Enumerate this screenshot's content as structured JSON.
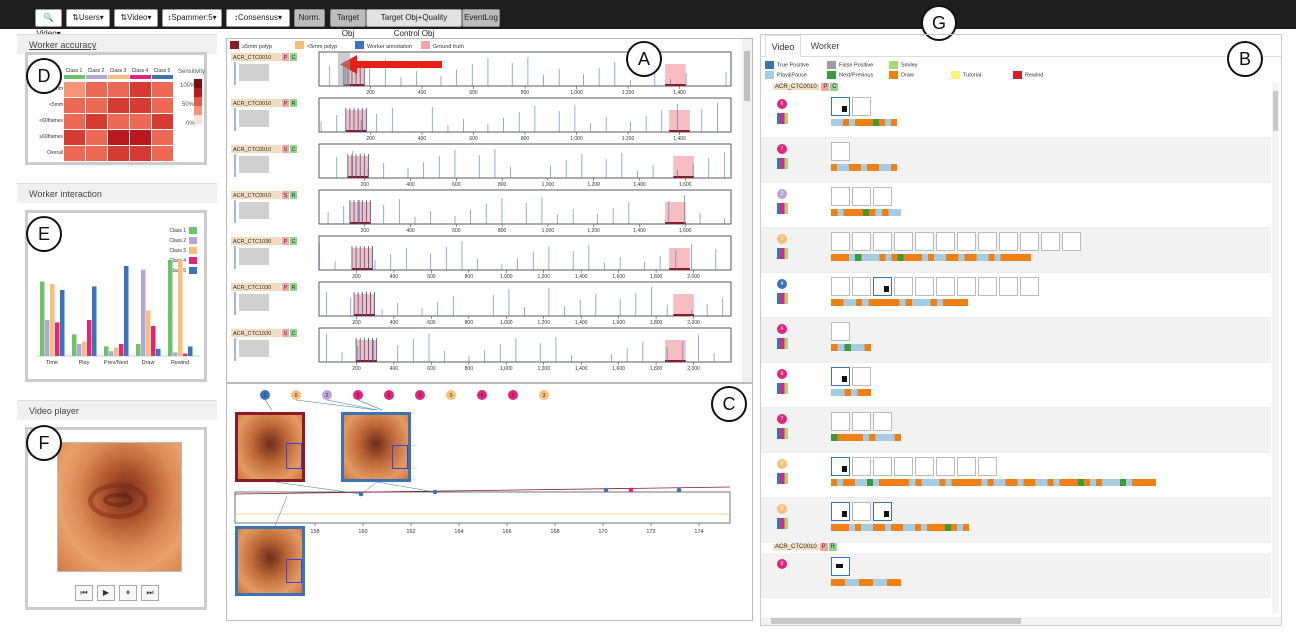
{
  "toolbar": {
    "buttons": [
      {
        "label": "Video",
        "icon": "search-icon"
      },
      {
        "label": "Users",
        "icon": "sort-icon"
      },
      {
        "label": "Video",
        "icon": "sort-icon"
      },
      {
        "label": "Spammer:5",
        "icon": "sort-vertical-icon"
      },
      {
        "label": "Consensus",
        "icon": "sort-vertical-icon"
      }
    ],
    "norm": "Norm.",
    "target_obj": "Target Obj",
    "target_qc": "Target Obj+Quality Control Obj",
    "eventlog": "EventLog"
  },
  "callouts": {
    "a": "A",
    "b": "B",
    "c": "C",
    "d": "D",
    "e": "E",
    "f": "F",
    "g": "G"
  },
  "worker_accuracy": {
    "title": "Worker accuracy",
    "classes": [
      "Class 1",
      "Class 2",
      "Class 3",
      "Class 4",
      "Class 5"
    ],
    "class_colors": [
      "#6cc36c",
      "#b7a5d9",
      "#f7bf79",
      "#e2257a",
      "#3b73b8"
    ],
    "rows": [
      "≥5mm",
      "<5mm",
      "<60frames",
      "≥60frames",
      "Overall"
    ],
    "sensitivity_label": "Sensitivity",
    "scale": [
      "100%",
      "50%",
      "0%"
    ]
  },
  "worker_interaction": {
    "title": "Worker interaction",
    "legend": [
      "Class 1",
      "Class 2",
      "Class 3",
      "Class 4",
      "Class 5"
    ],
    "categories": [
      "Time",
      "Play",
      "Prev/Next",
      "Draw",
      "Rewind"
    ]
  },
  "video_player": {
    "title": "Video player"
  },
  "timeline": {
    "legend": [
      "≥5mm polyp",
      "<5mm polyp",
      "Worker annotation",
      "Ground truth"
    ],
    "legend_colors": [
      "#8b1a2b",
      "#f7bf79",
      "#3b73b8",
      "#f4a3a8"
    ],
    "rows": [
      {
        "id": "ACR_CTC0010",
        "b1": "P",
        "b2": "C",
        "ticks": [
          "200",
          "400",
          "600",
          "800",
          "1,000",
          "1,200",
          "1,400"
        ]
      },
      {
        "id": "ACR_CTC0010",
        "b1": "P",
        "b2": "R",
        "ticks": [
          "200",
          "400",
          "600",
          "800",
          "1,000",
          "1,200",
          "1,400"
        ]
      },
      {
        "id": "ACR_CTC0010",
        "b1": "S",
        "b2": "C",
        "ticks": [
          "200",
          "400",
          "600",
          "800",
          "1,000",
          "1,200",
          "1,400",
          "1,600"
        ]
      },
      {
        "id": "ACR_CTC0010",
        "b1": "S",
        "b2": "R",
        "ticks": [
          "200",
          "400",
          "600",
          "800",
          "1,000",
          "1,200",
          "1,400",
          "1,600"
        ]
      },
      {
        "id": "ACR_CTC1030",
        "b1": "P",
        "b2": "C",
        "ticks": [
          "200",
          "400",
          "600",
          "800",
          "1,000",
          "1,200",
          "1,400",
          "1,600",
          "1,800",
          "2,000"
        ]
      },
      {
        "id": "ACR_CTC1030",
        "b1": "P",
        "b2": "R",
        "ticks": [
          "200",
          "400",
          "600",
          "800",
          "1,000",
          "1,200",
          "1,400",
          "1,600",
          "1,800",
          "2,000"
        ]
      },
      {
        "id": "ACR_CTC1030",
        "b1": "S",
        "b2": "C",
        "ticks": [
          "200",
          "400",
          "600",
          "800",
          "1,000",
          "1,200",
          "1,400",
          "1,600",
          "1,800",
          "2,000"
        ]
      }
    ]
  },
  "detail": {
    "workers": [
      "2",
      "0",
      "2",
      "3",
      "6",
      "6",
      "9",
      "6",
      "6",
      "3"
    ],
    "ticks": [
      "158",
      "160",
      "162",
      "164",
      "166",
      "168",
      "170",
      "172",
      "174"
    ]
  },
  "right": {
    "tabs": [
      "Video",
      "Worker"
    ],
    "legend": [
      {
        "label": "True Positive",
        "color": "#3b73b8"
      },
      {
        "label": "False Positive",
        "color": "#9e9e9e"
      },
      {
        "label": "Smiley",
        "color": "#a8d86e"
      },
      {
        "label": "Play&Pause",
        "color": "#a6cbe3"
      },
      {
        "label": "Next/Previous",
        "color": "#3a9a3a"
      },
      {
        "label": "Draw",
        "color": "#f07f14"
      },
      {
        "label": "Tutorial",
        "color": "#f8f37a"
      },
      {
        "label": "Rewind",
        "color": "#d41f2a"
      }
    ],
    "video_id": "ACR_CTC0010",
    "badges": [
      "P",
      "C"
    ],
    "workers": [
      "6",
      "7",
      "2",
      "3",
      "4",
      "6",
      "6",
      "7",
      "8",
      "9"
    ],
    "second_video": "ACR_CTC0010",
    "second_badges": [
      "P",
      "R"
    ],
    "last_worker": "0"
  }
}
